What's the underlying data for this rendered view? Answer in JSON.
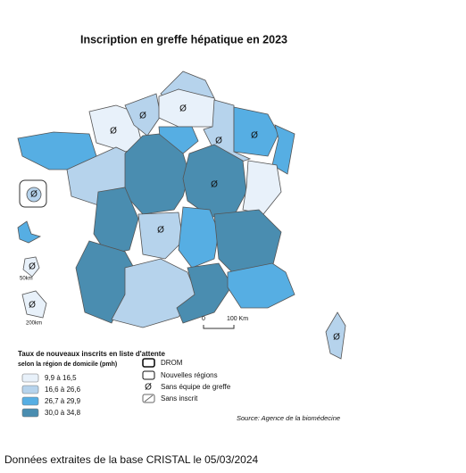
{
  "header": {
    "title": "Inscription en greffe hépatique en 2023"
  },
  "map": {
    "no_team_symbol": "Ø",
    "scale": {
      "start": "0",
      "end": "100 Km"
    },
    "drom_scales": [
      "50km",
      "200km"
    ]
  },
  "legend": {
    "title": "Taux de nouveaux inscrits en liste d'attente",
    "subtitle": "selon la région de domicile (pmh)",
    "classes": [
      {
        "label": "9,9 à 16,5",
        "color": "#e8f1fa"
      },
      {
        "label": "16,6 à 26,6",
        "color": "#b6d3ec"
      },
      {
        "label": "26,7 à 29,9",
        "color": "#56aee3"
      },
      {
        "label": "30,0 à 34,8",
        "color": "#4a8db0"
      }
    ],
    "symbols": [
      "DROM",
      "Nouvelles régions",
      "Sans équipe de greffe",
      "Sans inscrit"
    ]
  },
  "source": "Source: Agence de la biomédecine",
  "footer": "Données extraites de la base CRISTAL le 05/03/2024"
}
